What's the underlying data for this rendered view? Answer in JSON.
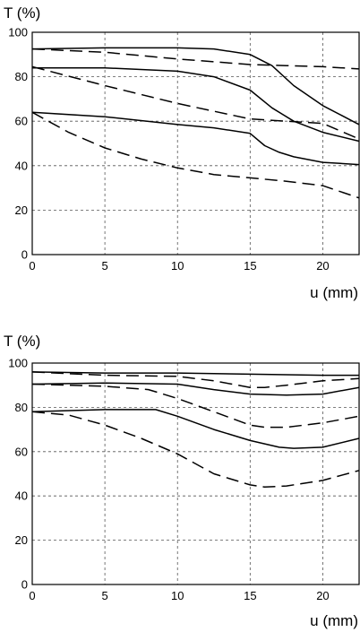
{
  "chart_data": [
    {
      "type": "line",
      "ylabel": "T (%)",
      "xlabel": "u (mm)",
      "xlim": [
        0,
        22.5
      ],
      "ylim": [
        0,
        100
      ],
      "xticks": [
        0,
        5,
        10,
        15,
        20
      ],
      "yticks": [
        0,
        20,
        40,
        60,
        80,
        100
      ],
      "grid": true,
      "series": [
        {
          "style": "solid",
          "x": [
            0,
            5,
            10,
            12.5,
            15,
            16.5,
            18,
            20,
            22.5
          ],
          "y": [
            92.5,
            93,
            93,
            92.5,
            90,
            85,
            76,
            67,
            58.5
          ]
        },
        {
          "style": "solid",
          "x": [
            0,
            5,
            10,
            12.5,
            15,
            16.5,
            18,
            20,
            22.5
          ],
          "y": [
            84,
            84,
            82.5,
            80,
            74,
            66,
            60,
            55,
            51
          ]
        },
        {
          "style": "solid",
          "x": [
            0,
            5,
            10,
            12.5,
            15,
            16,
            17,
            18,
            20,
            22.5
          ],
          "y": [
            64,
            62,
            58.5,
            57,
            54.5,
            49,
            46,
            44,
            41.5,
            40.5
          ]
        },
        {
          "style": "dashed",
          "x": [
            0,
            5,
            10,
            15,
            17.5,
            20,
            22.5
          ],
          "y": [
            92.5,
            91,
            88,
            85.5,
            85,
            84.5,
            83.5
          ]
        },
        {
          "style": "dashed",
          "x": [
            0,
            5,
            10,
            15,
            17.5,
            20,
            22.5
          ],
          "y": [
            84.5,
            76,
            68,
            61,
            60,
            59,
            52
          ]
        },
        {
          "style": "dashed",
          "x": [
            0,
            2.5,
            5,
            7.5,
            10,
            12.5,
            15,
            17.5,
            20,
            22.5
          ],
          "y": [
            64,
            55,
            48,
            43,
            39,
            36,
            34.5,
            33,
            31,
            25.5
          ]
        }
      ]
    },
    {
      "type": "line",
      "ylabel": "T (%)",
      "xlabel": "u (mm)",
      "xlim": [
        0,
        22.5
      ],
      "ylim": [
        0,
        100
      ],
      "xticks": [
        0,
        5,
        10,
        15,
        20
      ],
      "yticks": [
        0,
        20,
        40,
        60,
        80,
        100
      ],
      "grid": true,
      "series": [
        {
          "style": "solid",
          "x": [
            0,
            5,
            10,
            15,
            20,
            22.5
          ],
          "y": [
            96,
            95.5,
            95.5,
            95,
            94.5,
            94.5
          ]
        },
        {
          "style": "solid",
          "x": [
            0,
            5,
            10,
            12.5,
            15,
            17.5,
            20,
            22.5
          ],
          "y": [
            90.5,
            91,
            90.5,
            88,
            86,
            85.5,
            86,
            89
          ]
        },
        {
          "style": "solid",
          "x": [
            0,
            5,
            8.5,
            10,
            12.5,
            15,
            17,
            18,
            20,
            22.5
          ],
          "y": [
            78,
            79,
            79,
            76,
            70,
            65,
            62,
            61.5,
            62,
            66
          ]
        },
        {
          "style": "dashed",
          "x": [
            0,
            5,
            10,
            12.5,
            15,
            16,
            17.5,
            20,
            22.5
          ],
          "y": [
            96,
            94.5,
            94,
            92,
            89,
            89,
            90,
            92,
            93
          ]
        },
        {
          "style": "dashed",
          "x": [
            0,
            5,
            8,
            10,
            12.5,
            15,
            16,
            17.5,
            20,
            22.5
          ],
          "y": [
            90.5,
            89.5,
            88,
            84,
            78,
            72,
            71,
            71,
            73,
            76
          ]
        },
        {
          "style": "dashed",
          "x": [
            0,
            2.5,
            5,
            7.5,
            10,
            12.5,
            15,
            16,
            17.5,
            20,
            22.5
          ],
          "y": [
            78,
            76.5,
            72,
            66,
            59,
            50,
            45,
            44,
            44.5,
            47,
            51.5
          ]
        }
      ]
    }
  ]
}
